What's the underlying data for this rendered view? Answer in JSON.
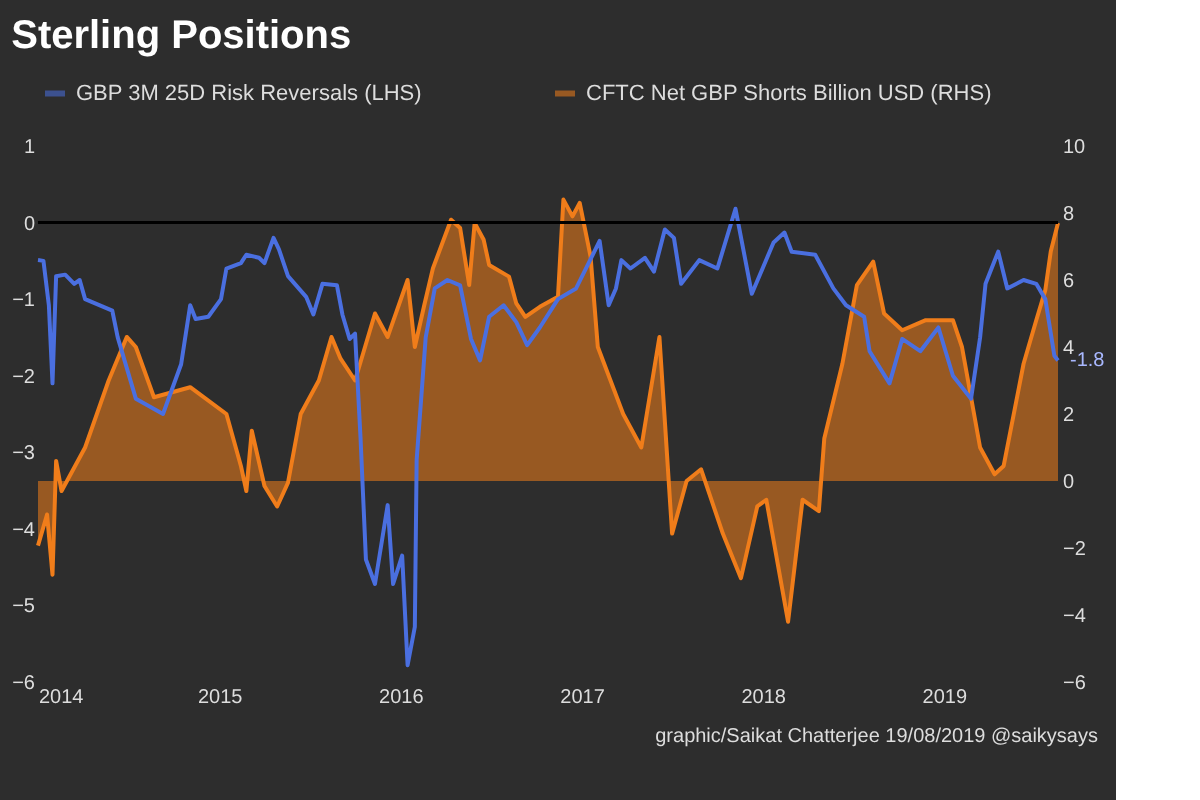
{
  "chart_data": {
    "type": "line",
    "title": "Sterling Positions",
    "xlim": [
      2014,
      2019.63
    ],
    "xticks": [
      2014,
      2015,
      2016,
      2017,
      2018,
      2019
    ],
    "ylim": [
      -6,
      1
    ],
    "yticks": [
      -6,
      -5,
      -4,
      -3,
      -2,
      -1,
      0,
      1
    ],
    "y2lim": [
      -6,
      10
    ],
    "y2ticks": [
      -6,
      -4,
      -2,
      0,
      2,
      4,
      6,
      8,
      10
    ],
    "grid": false,
    "legend": "top",
    "ref_lines": [
      {
        "axis": "y",
        "value": 0,
        "color": "#000000"
      }
    ],
    "annotations": [
      {
        "text": "-1.8",
        "x": 2019.63,
        "y": -1.8
      },
      "graphic/Saikat Chatterjee 19/08/2019 @saikysays"
    ],
    "series": [
      {
        "name": "GBP 3M 25D Risk Reversals (LHS)",
        "color": "#4a6fe0",
        "x": [
          2014.0,
          2014.03,
          2014.06,
          2014.08,
          2014.1,
          2014.15,
          2014.2,
          2014.23,
          2014.26,
          2014.41,
          2014.44,
          2014.54,
          2014.69,
          2014.79,
          2014.84,
          2014.87,
          2014.94,
          2015.01,
          2015.04,
          2015.12,
          2015.15,
          2015.22,
          2015.25,
          2015.3,
          2015.33,
          2015.38,
          2015.48,
          2015.52,
          2015.57,
          2015.65,
          2015.68,
          2015.72,
          2015.75,
          2015.78,
          2015.81,
          2015.86,
          2015.93,
          2015.96,
          2016.01,
          2016.04,
          2016.08,
          2016.09,
          2016.14,
          2016.19,
          2016.26,
          2016.33,
          2016.39,
          2016.44,
          2016.49,
          2016.57,
          2016.64,
          2016.7,
          2016.77,
          2016.87,
          2016.97,
          2017.1,
          2017.15,
          2017.19,
          2017.22,
          2017.27,
          2017.35,
          2017.4,
          2017.46,
          2017.51,
          2017.55,
          2017.65,
          2017.75,
          2017.85,
          2017.94,
          2018.06,
          2018.12,
          2018.16,
          2018.29,
          2018.39,
          2018.46,
          2018.56,
          2018.59,
          2018.7,
          2018.77,
          2018.87,
          2018.97,
          2019.05,
          2019.15,
          2019.2,
          2019.23,
          2019.3,
          2019.35,
          2019.44,
          2019.51,
          2019.56,
          2019.61,
          2019.63
        ],
        "values": [
          -0.49,
          -0.5,
          -1.08,
          -2.1,
          -0.7,
          -0.68,
          -0.8,
          -0.75,
          -1.0,
          -1.15,
          -1.5,
          -2.3,
          -2.5,
          -1.85,
          -1.08,
          -1.26,
          -1.23,
          -1.0,
          -0.6,
          -0.53,
          -0.42,
          -0.46,
          -0.53,
          -0.2,
          -0.35,
          -0.7,
          -0.97,
          -1.2,
          -0.8,
          -0.82,
          -1.2,
          -1.52,
          -1.45,
          -2.8,
          -4.4,
          -4.72,
          -3.69,
          -4.72,
          -4.35,
          -5.78,
          -5.28,
          -3.1,
          -1.5,
          -0.86,
          -0.75,
          -0.82,
          -1.52,
          -1.8,
          -1.23,
          -1.08,
          -1.3,
          -1.6,
          -1.37,
          -1.0,
          -0.86,
          -0.24,
          -1.08,
          -0.86,
          -0.49,
          -0.6,
          -0.46,
          -0.64,
          -0.09,
          -0.2,
          -0.8,
          -0.49,
          -0.6,
          0.18,
          -0.93,
          -0.26,
          -0.13,
          -0.38,
          -0.42,
          -0.86,
          -1.08,
          -1.23,
          -1.68,
          -2.1,
          -1.52,
          -1.68,
          -1.37,
          -2.0,
          -2.3,
          -1.5,
          -0.8,
          -0.38,
          -0.86,
          -0.75,
          -0.8,
          -1.0,
          -1.74,
          -1.8
        ]
      },
      {
        "name": "CFTC Net GBP Shorts Billion USD (RHS)",
        "type": "area",
        "axis": "y2",
        "color": "#f07d1a",
        "x": [
          2014.0,
          2014.05,
          2014.08,
          2014.1,
          2014.13,
          2014.26,
          2014.39,
          2014.49,
          2014.54,
          2014.64,
          2014.84,
          2015.04,
          2015.12,
          2015.15,
          2015.18,
          2015.25,
          2015.32,
          2015.38,
          2015.45,
          2015.55,
          2015.62,
          2015.67,
          2015.75,
          2015.86,
          2015.93,
          2016.04,
          2016.08,
          2016.13,
          2016.18,
          2016.28,
          2016.33,
          2016.38,
          2016.41,
          2016.46,
          2016.49,
          2016.6,
          2016.64,
          2016.69,
          2016.77,
          2016.87,
          2016.9,
          2016.95,
          2016.99,
          2017.05,
          2017.09,
          2017.23,
          2017.33,
          2017.43,
          2017.5,
          2017.58,
          2017.66,
          2017.78,
          2017.88,
          2017.97,
          2018.02,
          2018.14,
          2018.22,
          2018.31,
          2018.34,
          2018.44,
          2018.52,
          2018.61,
          2018.67,
          2018.77,
          2018.9,
          2019.05,
          2019.1,
          2019.15,
          2019.2,
          2019.28,
          2019.33,
          2019.44,
          2019.51,
          2019.56,
          2019.59,
          2019.63
        ],
        "values": [
          -1.93,
          -1.0,
          -2.8,
          0.6,
          -0.3,
          1.0,
          3.0,
          4.3,
          4.0,
          2.5,
          2.8,
          2.0,
          0.45,
          -0.3,
          1.5,
          -0.15,
          -0.76,
          -0.05,
          2.0,
          3.0,
          4.3,
          3.65,
          3.0,
          5.0,
          4.3,
          6.0,
          4.0,
          5.2,
          6.35,
          7.8,
          7.55,
          5.85,
          7.7,
          7.2,
          6.45,
          6.1,
          5.3,
          4.9,
          5.2,
          5.5,
          8.4,
          7.9,
          8.3,
          6.7,
          4.0,
          2.0,
          1.0,
          4.3,
          -1.57,
          0,
          0.35,
          -1.57,
          -2.9,
          -0.76,
          -0.56,
          -4.2,
          -0.56,
          -0.9,
          1.27,
          3.5,
          5.85,
          6.55,
          5.0,
          4.5,
          4.8,
          4.8,
          4.0,
          2.5,
          1.0,
          0.2,
          0.45,
          3.5,
          4.8,
          5.7,
          6.85,
          7.7
        ]
      }
    ]
  }
}
